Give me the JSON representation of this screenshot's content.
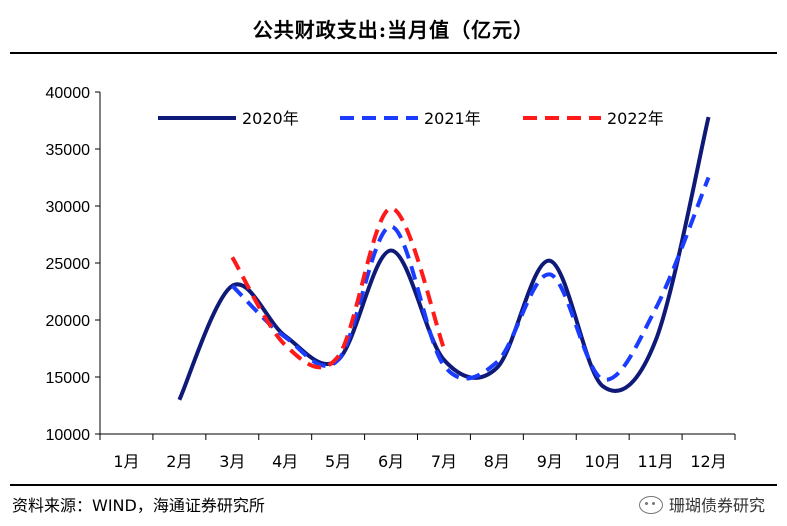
{
  "title": "公共财政支出:当月值（亿元）",
  "source": "资料来源：WIND，海通证券研究所",
  "watermark": "珊瑚债券研究",
  "chart_data": {
    "type": "line",
    "categories": [
      "1月",
      "2月",
      "3月",
      "4月",
      "5月",
      "6月",
      "7月",
      "8月",
      "9月",
      "10月",
      "11月",
      "12月"
    ],
    "ylim": [
      10000,
      40000
    ],
    "yticks": [
      10000,
      15000,
      20000,
      25000,
      30000,
      35000,
      40000
    ],
    "legend_position": "top",
    "series": [
      {
        "name": "2020年",
        "color": "#0f1a78",
        "style": "solid",
        "values": [
          null,
          13000,
          23000,
          18600,
          16500,
          26100,
          16500,
          15800,
          25200,
          14200,
          18200,
          37800
        ]
      },
      {
        "name": "2021年",
        "color": "#1a3cff",
        "style": "dashed",
        "values": [
          null,
          null,
          23000,
          18500,
          16500,
          28200,
          16000,
          16300,
          24000,
          14800,
          21000,
          32500
        ]
      },
      {
        "name": "2022年",
        "color": "#ff1a1a",
        "style": "dashed",
        "values": [
          null,
          null,
          25500,
          17800,
          16800,
          29800,
          17500,
          null,
          null,
          null,
          null,
          null
        ]
      }
    ]
  }
}
